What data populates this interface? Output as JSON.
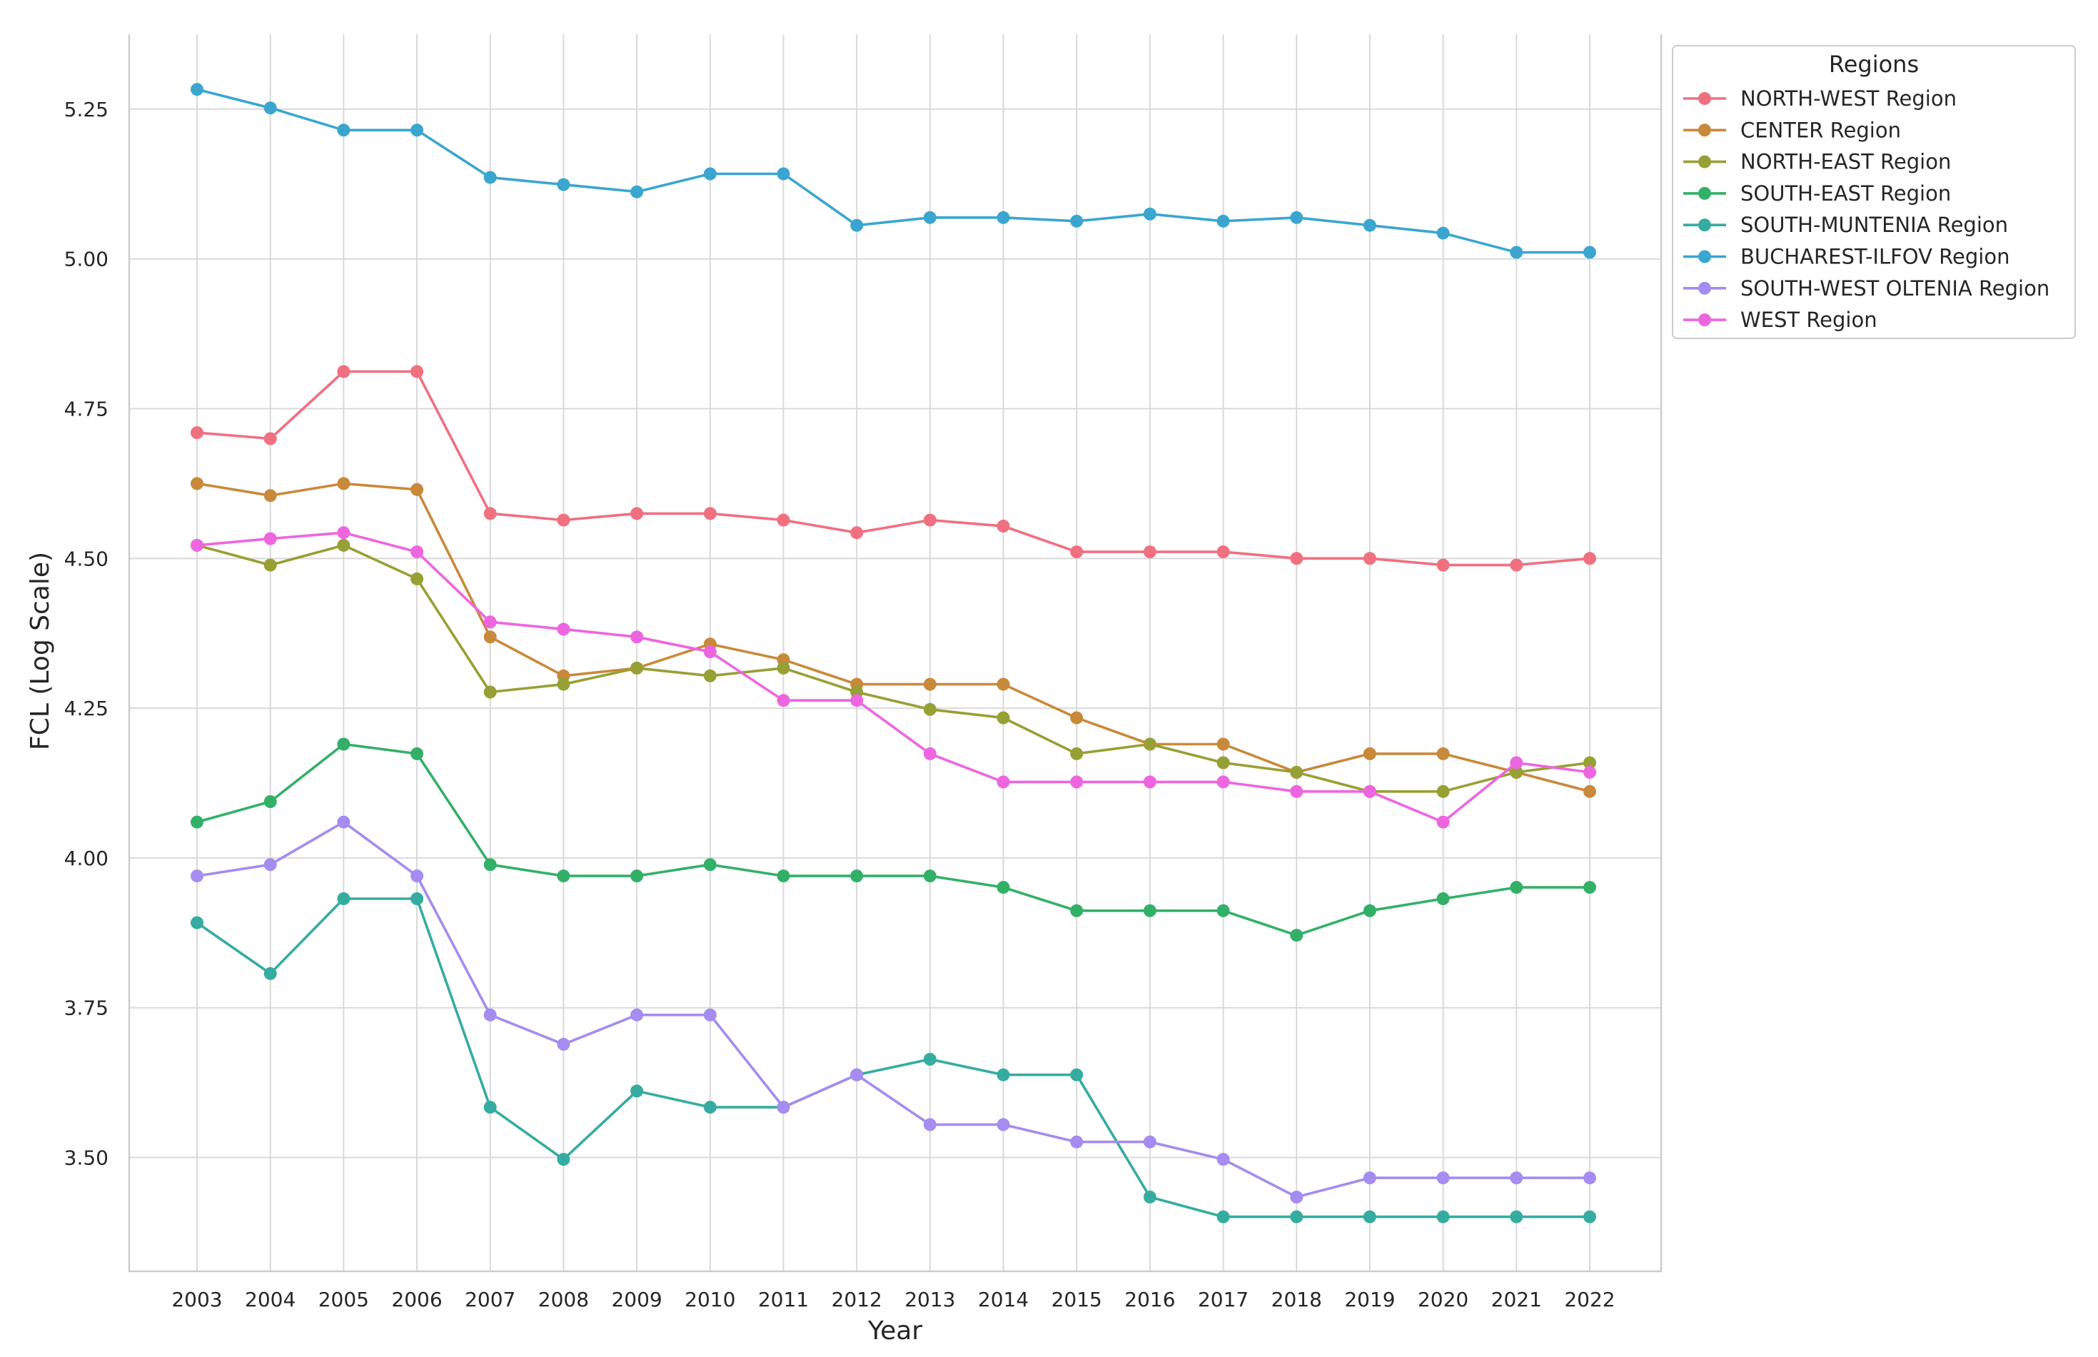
{
  "chart_data": {
    "type": "line",
    "title": "",
    "xlabel": "Year",
    "ylabel": "FCL (Log Scale)",
    "x": [
      2003,
      2004,
      2005,
      2006,
      2007,
      2008,
      2009,
      2010,
      2011,
      2012,
      2013,
      2014,
      2015,
      2016,
      2017,
      2018,
      2019,
      2020,
      2021,
      2022
    ],
    "x_tick_labels": [
      "2003",
      "2004",
      "2005",
      "2006",
      "2007",
      "2008",
      "2009",
      "2010",
      "2011",
      "2012",
      "2013",
      "2014",
      "2015",
      "2016",
      "2017",
      "2018",
      "2019",
      "2020",
      "2021",
      "2022"
    ],
    "ylim": [
      3.31,
      5.375
    ],
    "y_ticks": [
      3.5,
      3.75,
      4.0,
      4.25,
      4.5,
      4.75,
      5.0,
      5.25
    ],
    "y_tick_labels": [
      "3.50",
      "3.75",
      "4.00",
      "4.25",
      "4.50",
      "4.75",
      "5.00",
      "5.25"
    ],
    "grid": true,
    "legend": {
      "title": "Regions",
      "placement": "top-right outside"
    },
    "series": [
      {
        "name": " NORTH-WEST Region",
        "color": "#f07080",
        "values": [
          4.71,
          4.7,
          4.812,
          4.812,
          4.575,
          4.564,
          4.575,
          4.575,
          4.564,
          4.543,
          4.564,
          4.554,
          4.511,
          4.511,
          4.511,
          4.5,
          4.5,
          4.489,
          4.489,
          4.5
        ]
      },
      {
        "name": "CENTER Region",
        "color": "#c9893a",
        "values": [
          4.625,
          4.605,
          4.625,
          4.615,
          4.369,
          4.304,
          4.317,
          4.357,
          4.331,
          4.29,
          4.29,
          4.29,
          4.234,
          4.19,
          4.19,
          4.143,
          4.174,
          4.174,
          4.143,
          4.111
        ]
      },
      {
        "name": " NORTH-EAST Region",
        "color": "#97a034",
        "values": [
          4.522,
          4.489,
          4.522,
          4.466,
          4.277,
          4.29,
          4.317,
          4.304,
          4.317,
          4.277,
          4.248,
          4.234,
          4.174,
          4.19,
          4.159,
          4.143,
          4.111,
          4.111,
          4.143,
          4.159
        ]
      },
      {
        "name": "SOUTH-EAST Region",
        "color": "#33b068",
        "values": [
          4.06,
          4.094,
          4.19,
          4.174,
          3.989,
          3.97,
          3.97,
          3.989,
          3.97,
          3.97,
          3.97,
          3.951,
          3.912,
          3.912,
          3.912,
          3.871,
          3.912,
          3.932,
          3.951,
          3.951
        ]
      },
      {
        "name": " SOUTH-MUNTENIA Region",
        "color": "#35aca0",
        "values": [
          3.892,
          3.807,
          3.932,
          3.932,
          3.584,
          3.497,
          3.611,
          3.584,
          3.584,
          3.638,
          3.664,
          3.638,
          3.638,
          3.434,
          3.401,
          3.401,
          3.401,
          3.401,
          3.401,
          3.401
        ]
      },
      {
        "name": " BUCHAREST-ILFOV Region",
        "color": "#3aa6d0",
        "values": [
          5.283,
          5.252,
          5.215,
          5.215,
          5.136,
          5.124,
          5.112,
          5.142,
          5.142,
          5.056,
          5.069,
          5.069,
          5.063,
          5.075,
          5.063,
          5.069,
          5.056,
          5.043,
          5.011,
          5.011
        ]
      },
      {
        "name": " SOUTH-WEST OLTENIA Region",
        "color": "#a48cf0",
        "values": [
          3.97,
          3.989,
          4.06,
          3.97,
          3.738,
          3.689,
          3.738,
          3.738,
          3.584,
          3.638,
          3.555,
          3.555,
          3.526,
          3.526,
          3.497,
          3.434,
          3.466,
          3.466,
          3.466,
          3.466
        ]
      },
      {
        "name": " WEST Region",
        "color": "#ee65e0",
        "values": [
          4.522,
          4.533,
          4.543,
          4.511,
          4.394,
          4.382,
          4.369,
          4.344,
          4.263,
          4.263,
          4.174,
          4.127,
          4.127,
          4.127,
          4.127,
          4.111,
          4.111,
          4.06,
          4.159,
          4.143
        ]
      }
    ]
  }
}
